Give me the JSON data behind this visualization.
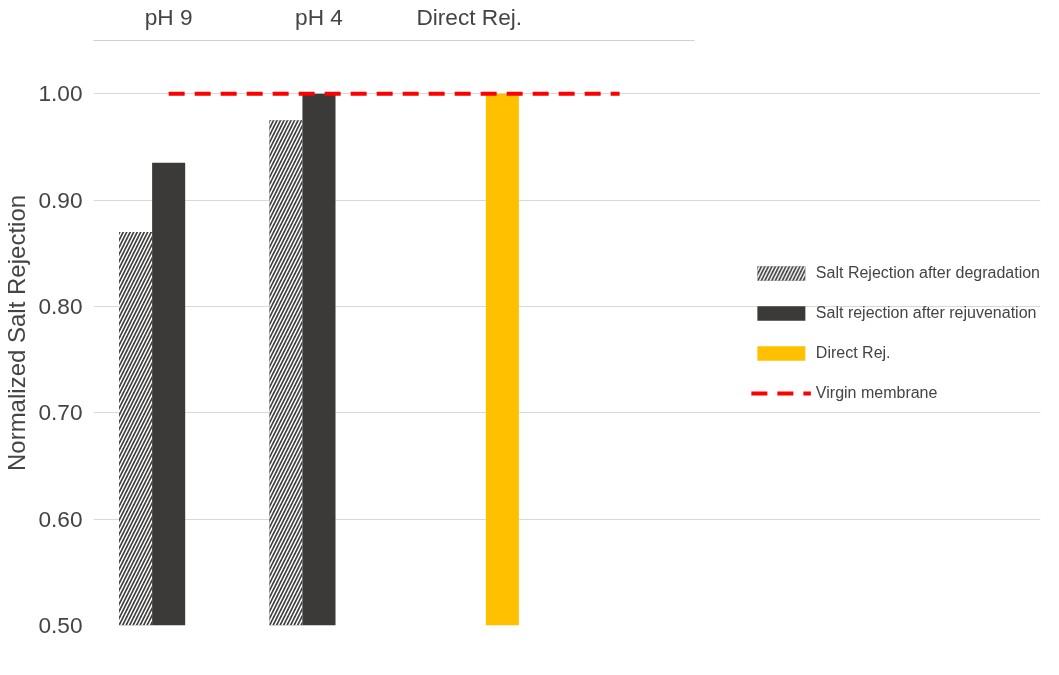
{
  "chart_data": {
    "type": "bar",
    "ylabel": "Normalized Salt Rejection",
    "categories": [
      "pH 9",
      "pH 4",
      "Direct Rej.",
      null
    ],
    "series": [
      {
        "name": "Salt Rejection after degradation",
        "color": "#404040",
        "values": [
          0.87,
          0.975,
          null,
          null
        ]
      },
      {
        "name": "Salt rejection after rejuvenation",
        "color": "#3b3a38",
        "values": [
          0.935,
          1.0,
          null,
          null
        ]
      },
      {
        "name": "Direct Rej.",
        "color": "#ffc000",
        "values": [
          null,
          null,
          1.0,
          null
        ]
      },
      {
        "name": "Virgin membrane",
        "type": "line",
        "color": "#ff0000",
        "line_style": "dashed",
        "values": [
          1.0,
          1.0,
          1.0,
          1.0
        ]
      }
    ],
    "ylim": [
      0.5,
      1.05
    ],
    "yticks": [
      {
        "value": 0.5,
        "label": "0.50"
      },
      {
        "value": 0.6,
        "label": "0.60"
      },
      {
        "value": 0.7,
        "label": "0.70"
      },
      {
        "value": 0.8,
        "label": "0.80"
      },
      {
        "value": 0.9,
        "label": "0.90"
      },
      {
        "value": 1.0,
        "label": "1.00"
      }
    ],
    "grid": "y",
    "legend": "right"
  }
}
